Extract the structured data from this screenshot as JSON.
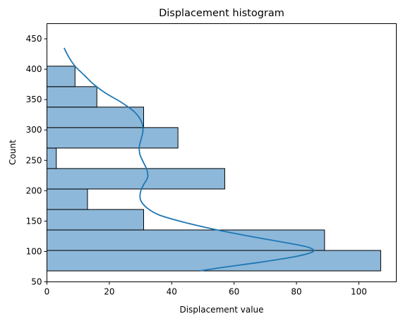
{
  "chart_data": {
    "type": "bar",
    "orientation": "horizontal",
    "title": "Displacement histogram",
    "xlabel": "Displacement value",
    "ylabel": "Count",
    "xlim": [
      0,
      112
    ],
    "ylim": [
      50,
      475
    ],
    "x_ticks": [
      0,
      20,
      40,
      60,
      80,
      100
    ],
    "y_ticks": [
      50,
      100,
      150,
      200,
      250,
      300,
      350,
      400,
      450
    ],
    "bar_color": "#8db8da",
    "edge_color": "#000000",
    "line_color": "#1f77b4",
    "bins": [
      {
        "y0": 68,
        "y1": 101.7,
        "value": 107
      },
      {
        "y0": 101.7,
        "y1": 135.4,
        "value": 89
      },
      {
        "y0": 135.4,
        "y1": 169.1,
        "value": 31
      },
      {
        "y0": 169.1,
        "y1": 202.8,
        "value": 13
      },
      {
        "y0": 202.8,
        "y1": 236.5,
        "value": 57
      },
      {
        "y0": 236.5,
        "y1": 270.2,
        "value": 3
      },
      {
        "y0": 270.2,
        "y1": 303.9,
        "value": 42
      },
      {
        "y0": 303.9,
        "y1": 337.6,
        "value": 31
      },
      {
        "y0": 337.6,
        "y1": 371.3,
        "value": 16
      },
      {
        "y0": 371.3,
        "y1": 405,
        "value": 9
      }
    ],
    "kde": [
      {
        "y": 68,
        "x": 49
      },
      {
        "y": 75,
        "x": 58
      },
      {
        "y": 82,
        "x": 68
      },
      {
        "y": 90,
        "x": 78
      },
      {
        "y": 97,
        "x": 84
      },
      {
        "y": 102,
        "x": 85.5
      },
      {
        "y": 108,
        "x": 83
      },
      {
        "y": 115,
        "x": 76
      },
      {
        "y": 125,
        "x": 65
      },
      {
        "y": 135,
        "x": 55
      },
      {
        "y": 148,
        "x": 44
      },
      {
        "y": 160,
        "x": 36
      },
      {
        "y": 172,
        "x": 32
      },
      {
        "y": 185,
        "x": 30
      },
      {
        "y": 198,
        "x": 30
      },
      {
        "y": 210,
        "x": 31
      },
      {
        "y": 222,
        "x": 32.3
      },
      {
        "y": 235,
        "x": 32
      },
      {
        "y": 248,
        "x": 30.8
      },
      {
        "y": 260,
        "x": 29.8
      },
      {
        "y": 272,
        "x": 29.6
      },
      {
        "y": 285,
        "x": 30.2
      },
      {
        "y": 300,
        "x": 30.8
      },
      {
        "y": 315,
        "x": 30.2
      },
      {
        "y": 330,
        "x": 28
      },
      {
        "y": 345,
        "x": 24
      },
      {
        "y": 360,
        "x": 19
      },
      {
        "y": 375,
        "x": 15
      },
      {
        "y": 390,
        "x": 12
      },
      {
        "y": 405,
        "x": 9
      },
      {
        "y": 420,
        "x": 7
      },
      {
        "y": 435,
        "x": 5.5
      }
    ]
  }
}
